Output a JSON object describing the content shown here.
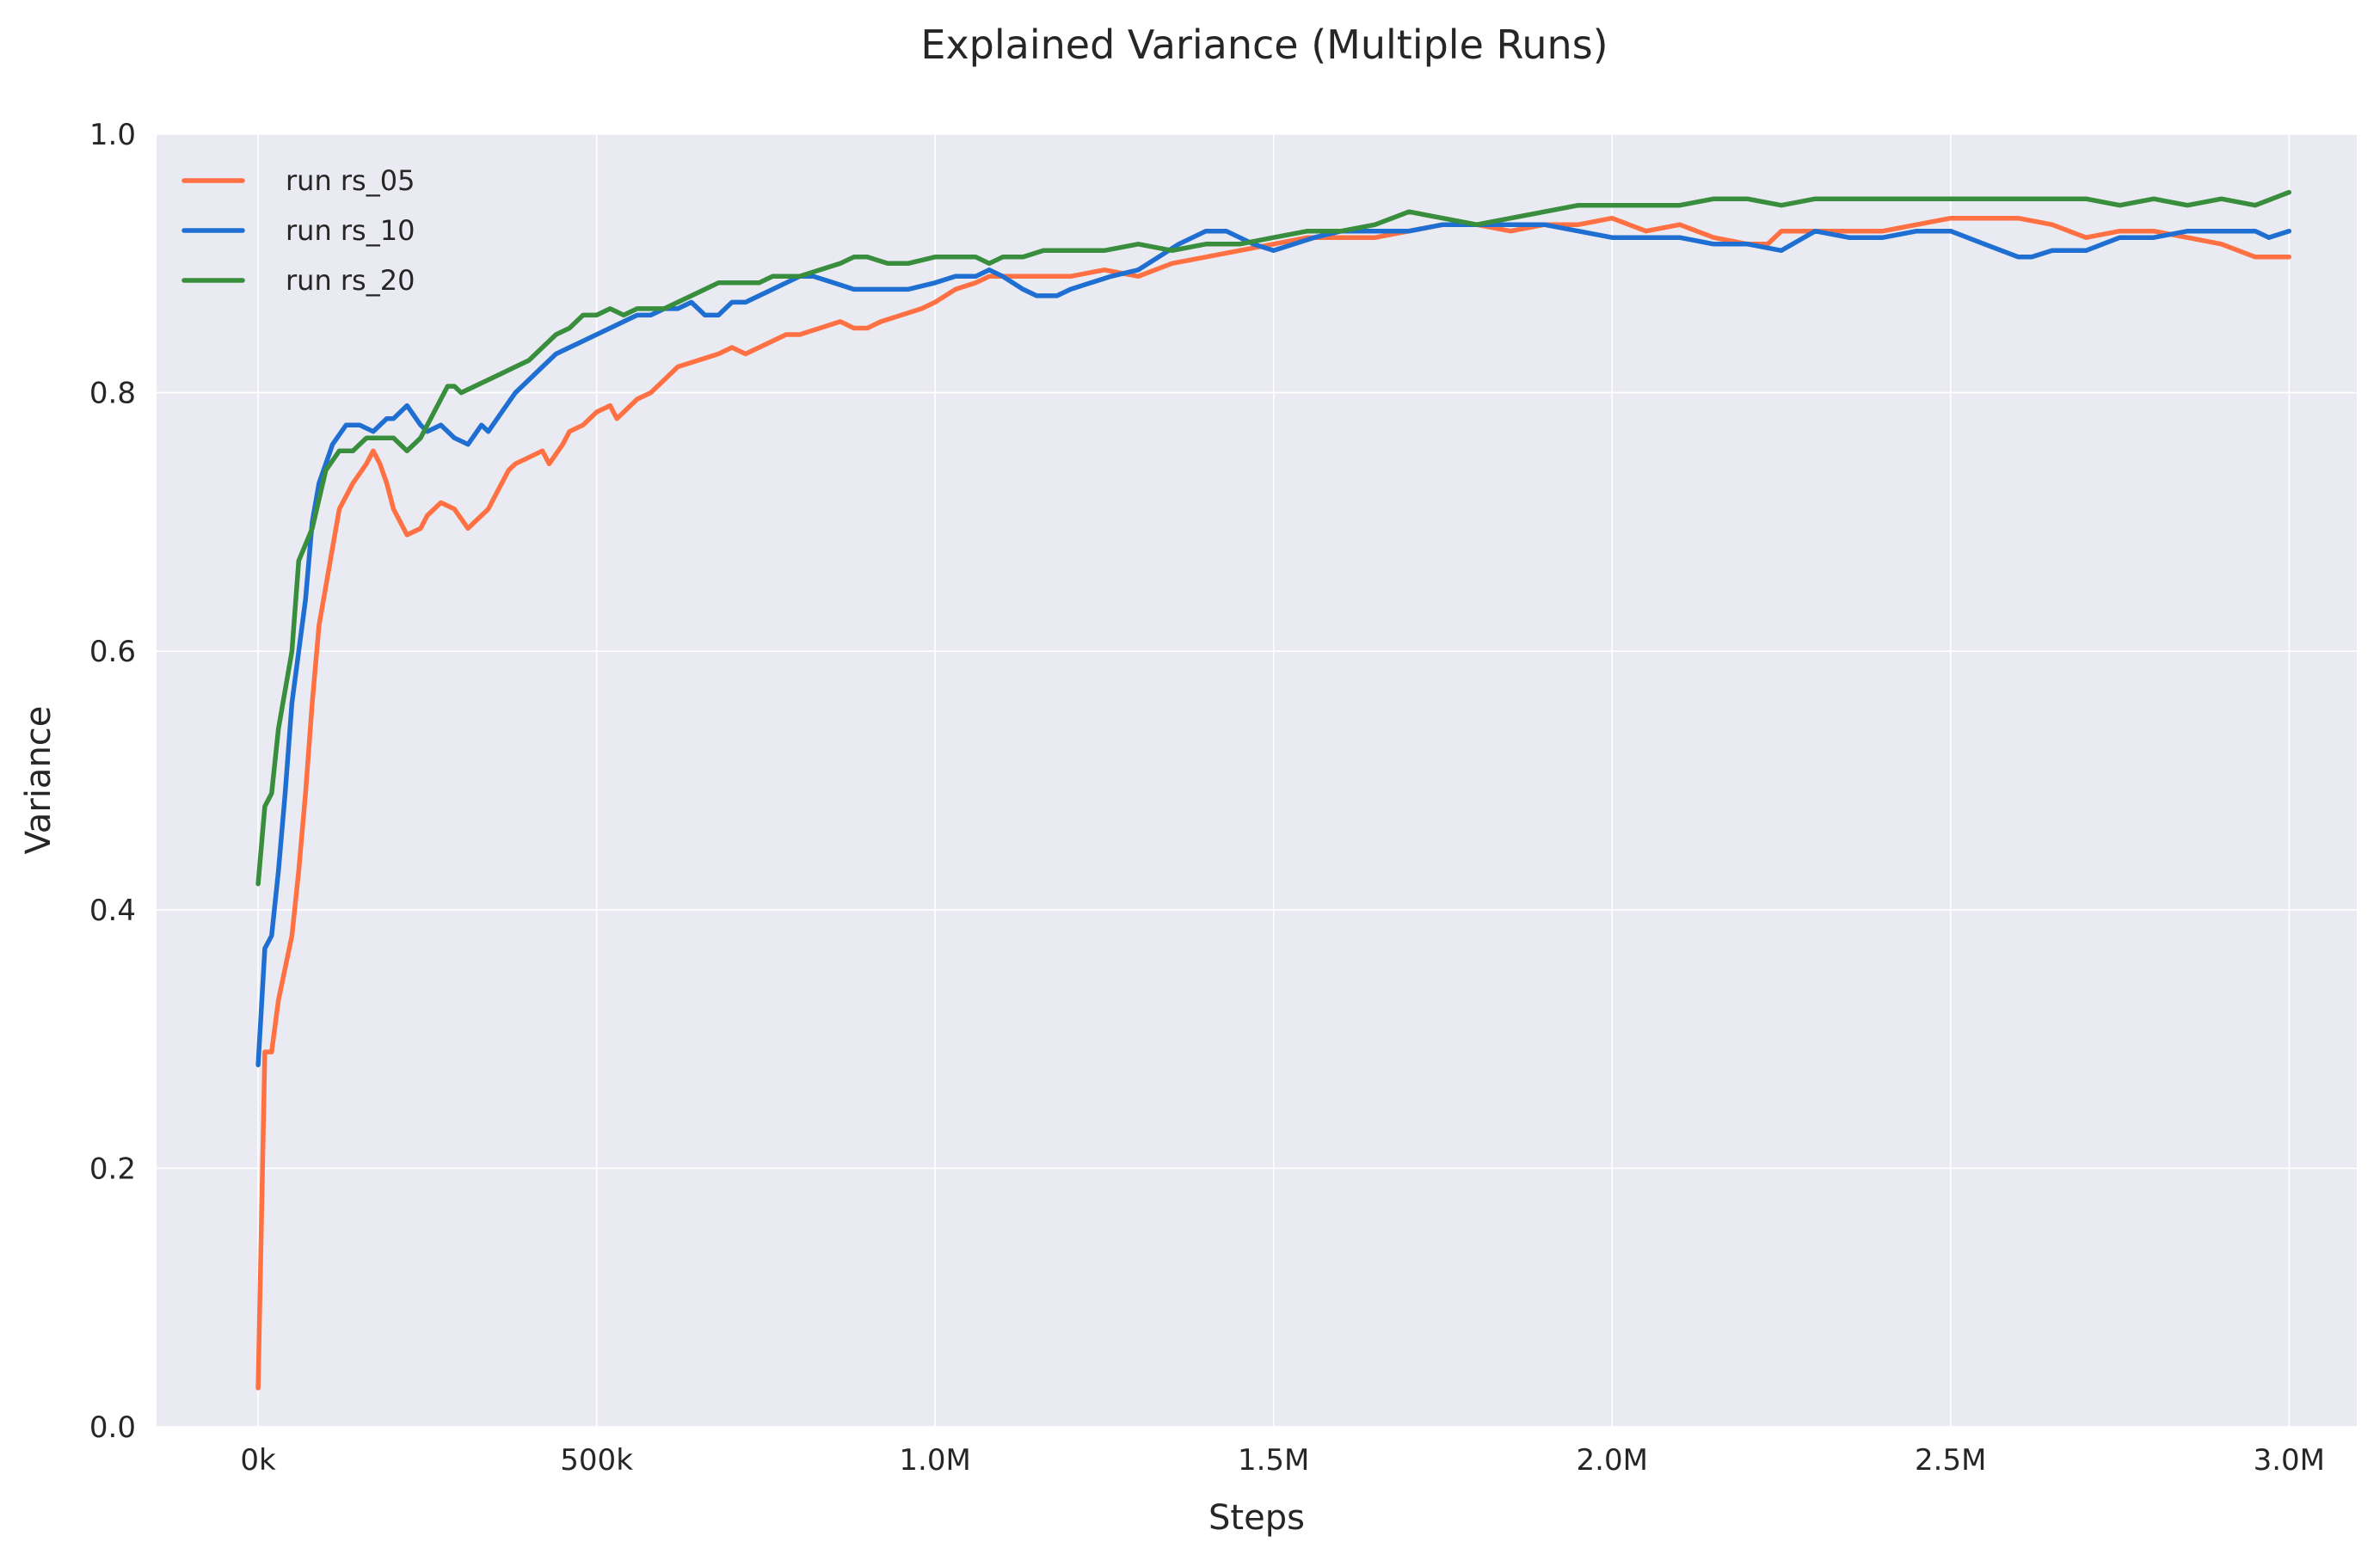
{
  "chart_data": {
    "type": "line",
    "title": "Explained Variance (Multiple Runs)",
    "xlabel": "Steps",
    "ylabel": "Variance",
    "xlim": [
      -150000,
      3100000
    ],
    "ylim": [
      0.0,
      1.0
    ],
    "xticks": [
      {
        "value": 0,
        "label": "0k"
      },
      {
        "value": 500000,
        "label": "500k"
      },
      {
        "value": 1000000,
        "label": "1.0M"
      },
      {
        "value": 1500000,
        "label": "1.5M"
      },
      {
        "value": 2000000,
        "label": "2.0M"
      },
      {
        "value": 2500000,
        "label": "2.5M"
      },
      {
        "value": 3000000,
        "label": "3.0M"
      }
    ],
    "yticks": [
      {
        "value": 0.0,
        "label": "0.0"
      },
      {
        "value": 0.2,
        "label": "0.2"
      },
      {
        "value": 0.4,
        "label": "0.4"
      },
      {
        "value": 0.6,
        "label": "0.6"
      },
      {
        "value": 0.8,
        "label": "0.8"
      },
      {
        "value": 1.0,
        "label": "1.0"
      }
    ],
    "grid": true,
    "legend_position": "top-left",
    "background": "#eaeaf2",
    "grid_color": "#ffffff",
    "series": [
      {
        "name": "run rs_05",
        "color": "#ff7043",
        "x": [
          0,
          10000,
          20000,
          30000,
          50000,
          60000,
          70000,
          80000,
          90000,
          100000,
          110000,
          120000,
          140000,
          160000,
          170000,
          180000,
          190000,
          200000,
          220000,
          240000,
          250000,
          270000,
          290000,
          310000,
          320000,
          340000,
          350000,
          370000,
          380000,
          400000,
          420000,
          430000,
          450000,
          460000,
          480000,
          500000,
          520000,
          530000,
          550000,
          560000,
          580000,
          600000,
          620000,
          650000,
          680000,
          700000,
          720000,
          740000,
          760000,
          780000,
          800000,
          830000,
          860000,
          880000,
          900000,
          920000,
          950000,
          980000,
          1000000,
          1030000,
          1060000,
          1080000,
          1100000,
          1150000,
          1200000,
          1250000,
          1300000,
          1350000,
          1400000,
          1450000,
          1500000,
          1550000,
          1600000,
          1650000,
          1700000,
          1750000,
          1800000,
          1850000,
          1900000,
          1950000,
          2000000,
          2050000,
          2100000,
          2150000,
          2200000,
          2230000,
          2250000,
          2300000,
          2350000,
          2400000,
          2450000,
          2500000,
          2550000,
          2600000,
          2650000,
          2700000,
          2750000,
          2800000,
          2850000,
          2900000,
          2950000,
          3000000
        ],
        "y": [
          0.03,
          0.29,
          0.29,
          0.33,
          0.38,
          0.43,
          0.49,
          0.56,
          0.62,
          0.65,
          0.68,
          0.71,
          0.73,
          0.745,
          0.755,
          0.745,
          0.73,
          0.71,
          0.69,
          0.695,
          0.705,
          0.715,
          0.71,
          0.695,
          0.7,
          0.71,
          0.72,
          0.74,
          0.745,
          0.75,
          0.755,
          0.745,
          0.76,
          0.77,
          0.775,
          0.785,
          0.79,
          0.78,
          0.79,
          0.795,
          0.8,
          0.81,
          0.82,
          0.825,
          0.83,
          0.835,
          0.83,
          0.835,
          0.84,
          0.845,
          0.845,
          0.85,
          0.855,
          0.85,
          0.85,
          0.855,
          0.86,
          0.865,
          0.87,
          0.88,
          0.885,
          0.89,
          0.89,
          0.89,
          0.89,
          0.895,
          0.89,
          0.9,
          0.905,
          0.91,
          0.915,
          0.92,
          0.92,
          0.92,
          0.925,
          0.93,
          0.93,
          0.925,
          0.93,
          0.93,
          0.935,
          0.925,
          0.93,
          0.92,
          0.915,
          0.915,
          0.925,
          0.925,
          0.925,
          0.925,
          0.93,
          0.935,
          0.935,
          0.935,
          0.93,
          0.92,
          0.925,
          0.925,
          0.92,
          0.915,
          0.905,
          0.905
        ]
      },
      {
        "name": "run rs_10",
        "color": "#1e6fd1",
        "x": [
          0,
          10000,
          20000,
          30000,
          40000,
          50000,
          60000,
          70000,
          80000,
          90000,
          100000,
          110000,
          130000,
          150000,
          170000,
          190000,
          200000,
          220000,
          240000,
          250000,
          270000,
          290000,
          310000,
          330000,
          340000,
          360000,
          380000,
          400000,
          420000,
          440000,
          460000,
          480000,
          500000,
          520000,
          540000,
          560000,
          580000,
          600000,
          620000,
          640000,
          660000,
          680000,
          700000,
          720000,
          740000,
          760000,
          780000,
          800000,
          820000,
          850000,
          880000,
          900000,
          930000,
          960000,
          1000000,
          1030000,
          1060000,
          1080000,
          1100000,
          1130000,
          1150000,
          1180000,
          1200000,
          1230000,
          1260000,
          1300000,
          1330000,
          1360000,
          1400000,
          1430000,
          1450000,
          1470000,
          1500000,
          1530000,
          1560000,
          1600000,
          1650000,
          1700000,
          1750000,
          1800000,
          1850000,
          1900000,
          1950000,
          2000000,
          2050000,
          2100000,
          2150000,
          2200000,
          2250000,
          2300000,
          2350000,
          2400000,
          2450000,
          2500000,
          2550000,
          2600000,
          2620000,
          2650000,
          2700000,
          2750000,
          2800000,
          2850000,
          2900000,
          2950000,
          2970000,
          3000000
        ],
        "y": [
          0.28,
          0.37,
          0.38,
          0.43,
          0.49,
          0.56,
          0.6,
          0.64,
          0.7,
          0.73,
          0.745,
          0.76,
          0.775,
          0.775,
          0.77,
          0.78,
          0.78,
          0.79,
          0.775,
          0.77,
          0.775,
          0.765,
          0.76,
          0.775,
          0.77,
          0.785,
          0.8,
          0.81,
          0.82,
          0.83,
          0.835,
          0.84,
          0.845,
          0.85,
          0.855,
          0.86,
          0.86,
          0.865,
          0.865,
          0.87,
          0.86,
          0.86,
          0.87,
          0.87,
          0.875,
          0.88,
          0.885,
          0.89,
          0.89,
          0.885,
          0.88,
          0.88,
          0.88,
          0.88,
          0.885,
          0.89,
          0.89,
          0.895,
          0.89,
          0.88,
          0.875,
          0.875,
          0.88,
          0.885,
          0.89,
          0.895,
          0.905,
          0.915,
          0.925,
          0.925,
          0.92,
          0.915,
          0.91,
          0.915,
          0.92,
          0.925,
          0.925,
          0.925,
          0.93,
          0.93,
          0.93,
          0.93,
          0.925,
          0.92,
          0.92,
          0.92,
          0.915,
          0.915,
          0.91,
          0.925,
          0.92,
          0.92,
          0.925,
          0.925,
          0.915,
          0.905,
          0.905,
          0.91,
          0.91,
          0.92,
          0.92,
          0.925,
          0.925,
          0.925,
          0.92,
          0.925
        ]
      },
      {
        "name": "run rs_20",
        "color": "#388e3c",
        "x": [
          0,
          10000,
          20000,
          30000,
          50000,
          60000,
          80000,
          100000,
          120000,
          140000,
          160000,
          180000,
          200000,
          220000,
          240000,
          260000,
          280000,
          290000,
          300000,
          320000,
          340000,
          360000,
          380000,
          400000,
          420000,
          440000,
          460000,
          480000,
          500000,
          520000,
          540000,
          560000,
          580000,
          600000,
          620000,
          640000,
          660000,
          680000,
          700000,
          720000,
          740000,
          760000,
          780000,
          800000,
          830000,
          860000,
          880000,
          900000,
          930000,
          960000,
          1000000,
          1030000,
          1060000,
          1080000,
          1100000,
          1130000,
          1160000,
          1200000,
          1250000,
          1300000,
          1350000,
          1400000,
          1450000,
          1500000,
          1550000,
          1600000,
          1650000,
          1700000,
          1750000,
          1800000,
          1850000,
          1900000,
          1950000,
          2000000,
          2050000,
          2100000,
          2150000,
          2200000,
          2250000,
          2300000,
          2350000,
          2400000,
          2450000,
          2500000,
          2550000,
          2600000,
          2650000,
          2700000,
          2750000,
          2800000,
          2850000,
          2900000,
          2950000,
          3000000
        ],
        "y": [
          0.42,
          0.48,
          0.49,
          0.54,
          0.6,
          0.67,
          0.695,
          0.74,
          0.755,
          0.755,
          0.765,
          0.765,
          0.765,
          0.755,
          0.765,
          0.785,
          0.805,
          0.805,
          0.8,
          0.805,
          0.81,
          0.815,
          0.82,
          0.825,
          0.835,
          0.845,
          0.85,
          0.86,
          0.86,
          0.865,
          0.86,
          0.865,
          0.865,
          0.865,
          0.87,
          0.875,
          0.88,
          0.885,
          0.885,
          0.885,
          0.885,
          0.89,
          0.89,
          0.89,
          0.895,
          0.9,
          0.905,
          0.905,
          0.9,
          0.9,
          0.905,
          0.905,
          0.905,
          0.9,
          0.905,
          0.905,
          0.91,
          0.91,
          0.91,
          0.915,
          0.91,
          0.915,
          0.915,
          0.92,
          0.925,
          0.925,
          0.93,
          0.94,
          0.935,
          0.93,
          0.935,
          0.94,
          0.945,
          0.945,
          0.945,
          0.945,
          0.95,
          0.95,
          0.945,
          0.95,
          0.95,
          0.95,
          0.95,
          0.95,
          0.95,
          0.95,
          0.95,
          0.95,
          0.945,
          0.95,
          0.945,
          0.95,
          0.945,
          0.955
        ]
      }
    ]
  }
}
